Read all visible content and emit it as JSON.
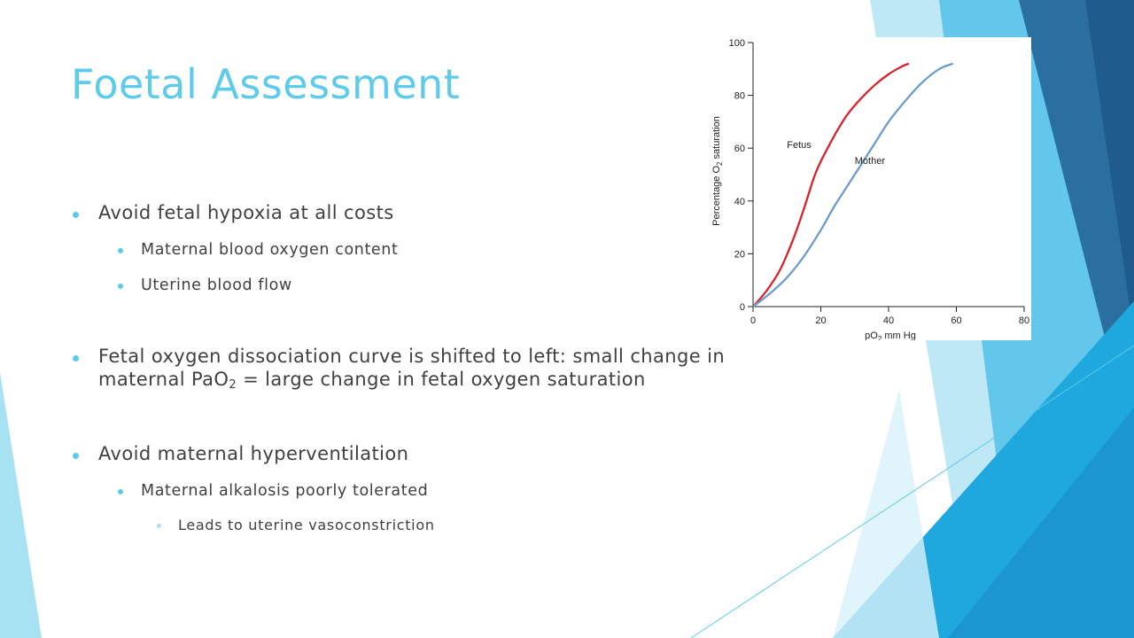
{
  "slide": {
    "title": "Foetal Assessment",
    "bullets": {
      "b1": "Avoid fetal hypoxia at all costs",
      "b1_1": "Maternal blood oxygen content",
      "b1_2": "Uterine blood flow",
      "b2_line1": "Fetal oxygen dissociation curve is shifted to left:  small change in",
      "b2_line2_pre": "maternal PaO",
      "b2_line2_sub": "2",
      "b2_line2_post": " = large change in fetal oxygen saturation",
      "b3": "Avoid maternal hyperventilation",
      "b3_1": "Maternal alkalosis poorly tolerated",
      "b3_1_1": "Leads to uterine vasoconstriction"
    },
    "theme_colors": {
      "accent": "#5ecbea",
      "body_text": "#404040",
      "deep_blue": "#2a6fa0",
      "mid_blue": "#1f9fd8",
      "light_blue": "#bfe8f6"
    }
  },
  "chart_data": {
    "type": "line",
    "title": "",
    "xlabel_parts": [
      "pO",
      "2",
      " mm Hg"
    ],
    "ylabel_parts": [
      "Percentage O",
      "2",
      " saturation"
    ],
    "xlim": [
      0,
      80
    ],
    "ylim": [
      0,
      100
    ],
    "x_ticks": [
      0,
      20,
      40,
      60,
      80
    ],
    "y_ticks": [
      0,
      20,
      40,
      60,
      80,
      100
    ],
    "grid": false,
    "series": [
      {
        "name": "Fetus",
        "color": "#d9222a",
        "x": [
          0,
          4,
          8,
          12,
          15,
          18,
          20,
          22,
          25,
          28,
          32,
          36,
          40,
          44,
          46
        ],
        "y": [
          0,
          6,
          14,
          26,
          37,
          49,
          55,
          60,
          67,
          73,
          79,
          84,
          88,
          91,
          92
        ]
      },
      {
        "name": "Mother",
        "color": "#6a9ccc",
        "x": [
          0,
          5,
          10,
          15,
          20,
          24,
          28,
          32,
          36,
          40,
          45,
          50,
          55,
          59
        ],
        "y": [
          0,
          5,
          11,
          19,
          29,
          38,
          46,
          54,
          62,
          70,
          78,
          85,
          90,
          92
        ]
      }
    ],
    "annotations": [
      {
        "text": "Fetus",
        "x": 10,
        "y": 60
      },
      {
        "text": "Mother",
        "x": 30,
        "y": 54
      }
    ]
  }
}
